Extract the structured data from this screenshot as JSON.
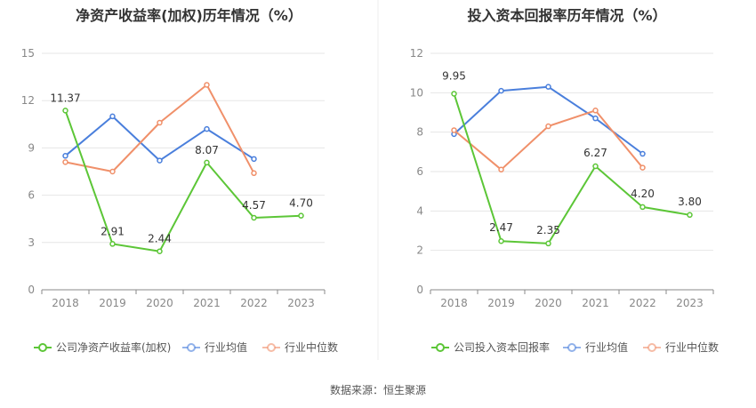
{
  "source": "数据来源：恒生聚源",
  "chart_data": [
    {
      "type": "line",
      "title": "净资产收益率(加权)历年情况（%）",
      "categories": [
        "2018",
        "2019",
        "2020",
        "2021",
        "2022",
        "2023"
      ],
      "ylim": [
        0,
        15
      ],
      "yticks": [
        0,
        3,
        6,
        9,
        12,
        15
      ],
      "grid": true,
      "legend_position": "bottom",
      "series": [
        {
          "name": "公司净资产收益率(加权)",
          "color": "#5cc637",
          "values": [
            11.37,
            2.91,
            2.44,
            8.07,
            4.57,
            4.7
          ],
          "labels": [
            "11.37",
            "2.91",
            "2.44",
            "8.07",
            "4.57",
            "4.70"
          ]
        },
        {
          "name": "行业均值",
          "color": "#4a7fdc",
          "values": [
            8.5,
            11.0,
            8.2,
            10.2,
            8.3,
            null
          ]
        },
        {
          "name": "行业中位数",
          "color": "#f0906a",
          "values": [
            8.1,
            7.5,
            10.6,
            13.0,
            7.4,
            null
          ]
        }
      ]
    },
    {
      "type": "line",
      "title": "投入资本回报率历年情况（%）",
      "categories": [
        "2018",
        "2019",
        "2020",
        "2021",
        "2022",
        "2023"
      ],
      "ylim": [
        0,
        12
      ],
      "yticks": [
        0,
        2,
        4,
        6,
        8,
        10,
        12
      ],
      "grid": true,
      "legend_position": "bottom",
      "series": [
        {
          "name": "公司投入资本回报率",
          "color": "#5cc637",
          "values": [
            9.95,
            2.47,
            2.35,
            6.27,
            4.2,
            3.8
          ],
          "labels": [
            "9.95",
            "2.47",
            "2.35",
            "6.27",
            "4.20",
            "3.80"
          ]
        },
        {
          "name": "行业均值",
          "color": "#4a7fdc",
          "values": [
            7.9,
            10.1,
            10.3,
            8.7,
            6.9,
            null
          ]
        },
        {
          "name": "行业中位数",
          "color": "#f0906a",
          "values": [
            8.1,
            6.1,
            8.3,
            9.1,
            6.2,
            null
          ]
        }
      ]
    }
  ]
}
